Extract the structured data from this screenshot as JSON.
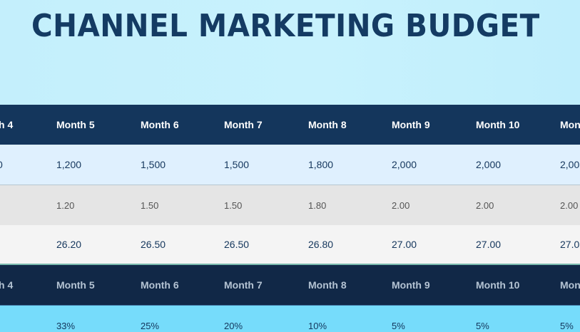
{
  "title": "CHANNEL MARKETING BUDGET",
  "header_row": [
    "h 4",
    "Month 5",
    "Month 6",
    "Month 7",
    "Month 8",
    "Month 9",
    "Month 10",
    "Mon"
  ],
  "rows": [
    [
      "0",
      "1,200",
      "1,500",
      "1,500",
      "1,800",
      "2,000",
      "2,000",
      "2,00"
    ],
    [
      "",
      "1.20",
      "1.50",
      "1.50",
      "1.80",
      "2.00",
      "2.00",
      "2.00"
    ],
    [
      "",
      "26.20",
      "26.50",
      "26.50",
      "26.80",
      "27.00",
      "27.00",
      "27.0"
    ]
  ],
  "header_row_2": [
    "h 4",
    "Month 5",
    "Month 6",
    "Month 7",
    "Month 8",
    "Month 9",
    "Month 10",
    "Mon"
  ],
  "percent_row": [
    "",
    "33%",
    "25%",
    "20%",
    "10%",
    "5%",
    "5%",
    "5%"
  ]
}
